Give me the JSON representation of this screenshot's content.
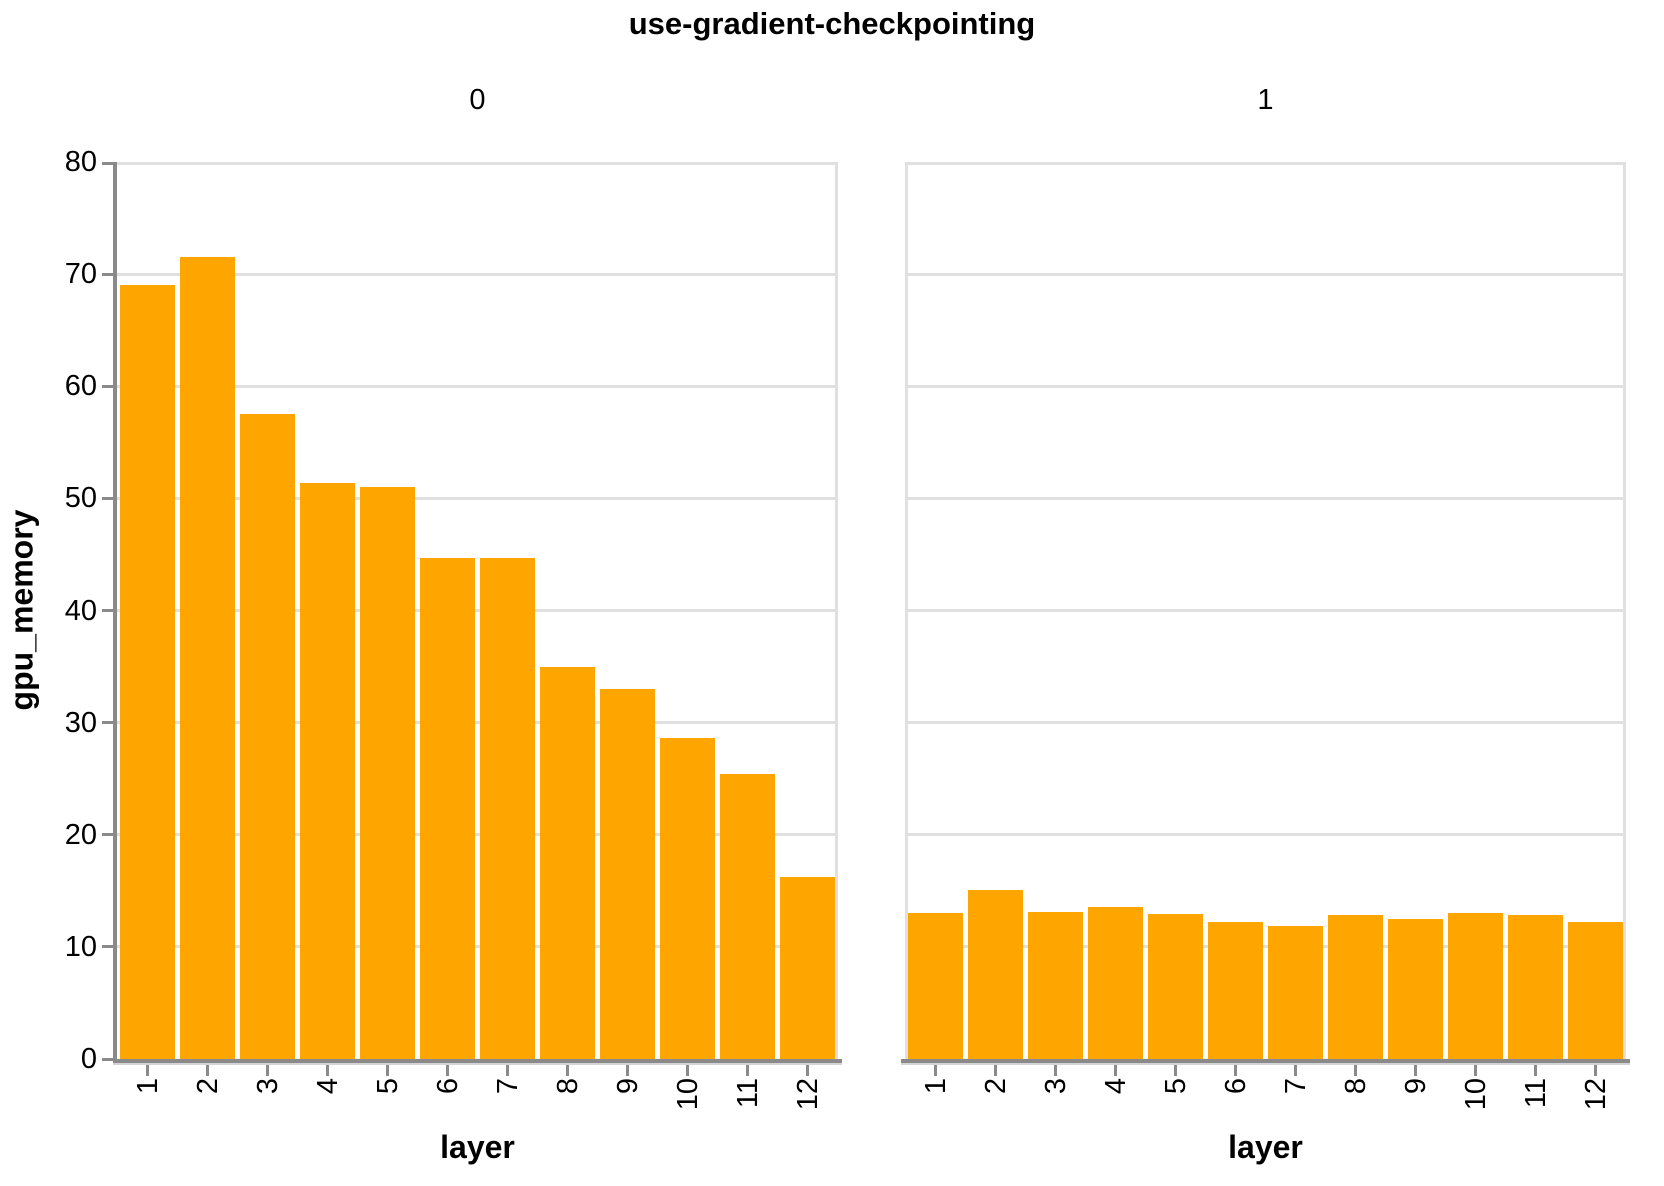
{
  "chart_data": {
    "type": "bar",
    "title": "use-gradient-checkpointing",
    "xlabel": "layer",
    "ylabel": "gpu_memory",
    "ylim": [
      0,
      80
    ],
    "y_ticks": [
      0,
      10,
      20,
      30,
      40,
      50,
      60,
      70,
      80
    ],
    "categories": [
      "1",
      "2",
      "3",
      "4",
      "5",
      "6",
      "7",
      "8",
      "9",
      "10",
      "11",
      "12"
    ],
    "facets": [
      {
        "label": "0",
        "values": [
          69.0,
          71.5,
          57.5,
          51.4,
          51.0,
          44.7,
          44.7,
          35.0,
          33.0,
          28.6,
          25.4,
          16.2
        ]
      },
      {
        "label": "1",
        "values": [
          13.0,
          15.1,
          13.1,
          13.6,
          12.9,
          12.2,
          11.9,
          12.8,
          12.5,
          13.0,
          12.8,
          12.2
        ]
      }
    ],
    "grid": true,
    "legend_position": "none",
    "colors": {
      "bar": "#FFA500",
      "axis": "#8a8a8a",
      "axis_shadow": "#d4d4d4",
      "grid": "#e0e0e0",
      "text": "#000000"
    }
  }
}
